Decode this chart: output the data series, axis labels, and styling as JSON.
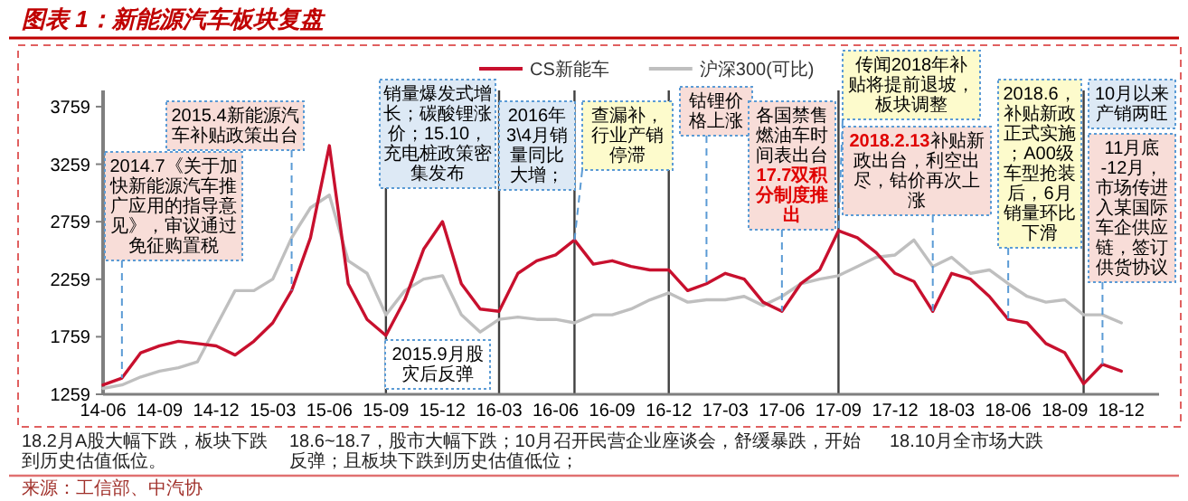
{
  "chart_data": {
    "type": "line",
    "title": "图表 1：新能源汽车板块复盘",
    "legend": "top",
    "grid": false,
    "x": [
      "2014-06",
      "2014-07",
      "2014-08",
      "2014-09",
      "2014-10",
      "2014-11",
      "2014-12",
      "2015-01",
      "2015-02",
      "2015-03",
      "2015-04",
      "2015-05",
      "2015-06",
      "2015-07",
      "2015-08",
      "2015-09",
      "2015-10",
      "2015-11",
      "2015-12",
      "2016-01",
      "2016-02",
      "2016-03",
      "2016-04",
      "2016-05",
      "2016-06",
      "2016-07",
      "2016-08",
      "2016-09",
      "2016-10",
      "2016-11",
      "2016-12",
      "2017-01",
      "2017-02",
      "2017-03",
      "2017-04",
      "2017-05",
      "2017-06",
      "2017-07",
      "2017-08",
      "2017-09",
      "2017-10",
      "2017-11",
      "2017-12",
      "2018-01",
      "2018-02",
      "2018-03",
      "2018-04",
      "2018-05",
      "2018-06",
      "2018-07",
      "2018-08",
      "2018-09",
      "2018-10",
      "2018-11",
      "2018-12"
    ],
    "series": [
      {
        "name": "CS新能车",
        "color": "#c8102e",
        "values": [
          1340,
          1400,
          1620,
          1680,
          1720,
          1700,
          1680,
          1600,
          1720,
          1880,
          2160,
          2620,
          3420,
          2220,
          1910,
          1770,
          2080,
          2520,
          2760,
          2220,
          2000,
          1980,
          2310,
          2420,
          2470,
          2600,
          2390,
          2420,
          2370,
          2340,
          2340,
          2160,
          2220,
          2310,
          2260,
          2060,
          1980,
          2220,
          2340,
          2680,
          2620,
          2490,
          2310,
          2240,
          1980,
          2310,
          2260,
          2110,
          1910,
          1880,
          1700,
          1620,
          1350,
          1520,
          1460
        ]
      },
      {
        "name": "沪深300(可比)",
        "color": "#bfbfbf",
        "values": [
          1310,
          1340,
          1410,
          1460,
          1490,
          1540,
          1850,
          2160,
          2160,
          2260,
          2620,
          2880,
          2990,
          2420,
          2310,
          1950,
          2160,
          2260,
          2290,
          1950,
          1800,
          1910,
          1930,
          1910,
          1910,
          1880,
          1950,
          1950,
          2000,
          2080,
          2140,
          2060,
          2080,
          2080,
          2110,
          2030,
          2110,
          2220,
          2260,
          2290,
          2370,
          2450,
          2470,
          2600,
          2370,
          2450,
          2310,
          2340,
          2220,
          2110,
          2060,
          2080,
          1950,
          1950,
          1880
        ]
      }
    ],
    "xlim": [
      "2014-06",
      "2019-02"
    ],
    "xticks": [
      {
        "value": "2014-06",
        "label": "14-06"
      },
      {
        "value": "2014-09",
        "label": "14-09"
      },
      {
        "value": "2014-12",
        "label": "14-12"
      },
      {
        "value": "2015-03",
        "label": "15-03"
      },
      {
        "value": "2015-06",
        "label": "15-06"
      },
      {
        "value": "2015-09",
        "label": "15-09"
      },
      {
        "value": "2015-12",
        "label": "15-12"
      },
      {
        "value": "2016-03",
        "label": "16-03"
      },
      {
        "value": "2016-06",
        "label": "16-06"
      },
      {
        "value": "2016-09",
        "label": "16-09"
      },
      {
        "value": "2016-12",
        "label": "16-12"
      },
      {
        "value": "2017-03",
        "label": "17-03"
      },
      {
        "value": "2017-06",
        "label": "17-06"
      },
      {
        "value": "2017-09",
        "label": "17-09"
      },
      {
        "value": "2017-12",
        "label": "17-12"
      },
      {
        "value": "2018-03",
        "label": "18-03"
      },
      {
        "value": "2018-06",
        "label": "18-06"
      },
      {
        "value": "2018-09",
        "label": "18-09"
      },
      {
        "value": "2018-12",
        "label": "18-12"
      }
    ],
    "ylim": [
      1259,
      3900
    ],
    "yticks": [
      1259,
      1759,
      2259,
      2759,
      3259,
      3759
    ],
    "ref_lines": [
      {
        "axis": "x",
        "value": "2015-09",
        "color": "#404040"
      },
      {
        "axis": "x",
        "value": "2016-03",
        "color": "#404040"
      },
      {
        "axis": "x",
        "value": "2016-07",
        "color": "#404040"
      },
      {
        "axis": "x",
        "value": "2016-12",
        "color": "#404040"
      },
      {
        "axis": "x",
        "value": "2017-09",
        "color": "#404040"
      },
      {
        "axis": "x",
        "value": "2018-10",
        "color": "#404040"
      }
    ],
    "annotations": [
      {
        "text": "2014.7《关于加快新能源汽车推广应用的指导意见》，审议通过免征购置税",
        "x": "2014-07",
        "y": 1400
      },
      {
        "text": "2015.4新能源汽车补贴政策出台",
        "x": "2015-04",
        "y": 2160
      },
      "销量爆发式增长；碳酸锂涨价；15.10，充电桩政策密集发布",
      "2016年3\\4月销量同比大增；",
      {
        "text": "查漏补，行业产销停滞",
        "x": "2016-07",
        "y": 2600
      },
      {
        "text": "钴锂价格上涨",
        "x": "2017-02",
        "y": 2220
      },
      "各国禁售燃油车时间表出台",
      {
        "text": "17.7双积分制度推出",
        "x": "2017-06",
        "y": 1980
      },
      {
        "text": "传闻2018年补贴将提前退坡，板块调整",
        "x": "2017-09",
        "y": 2680
      },
      "2018.2.13",
      {
        "text": "补贴新政出台，利空出尽，钴价再次上涨",
        "x": "2018-02",
        "y": 1980
      },
      {
        "text": "2018.6，补贴新政正式实施；A00级车型抢装后，6月销量环比下滑",
        "x": "2018-06",
        "y": 1910
      },
      "10月以来产销两旺",
      {
        "text": "11月底-12月，市场传进入某国际车企供应链，签订供货协议",
        "x": "2018-11",
        "y": 1520
      },
      "2015.9月股灾后反弹",
      "18.2月A股大幅下跌，板块下跌到历史估值低位。",
      "18.6~18.7，股市大幅下跌；10月召开民营企业座谈会，舒缓暴跌，开始反弹；且板块下跌到历史估值低位；",
      "18.10月全市场大跌",
      "来源：工信部、中汽协"
    ]
  }
}
